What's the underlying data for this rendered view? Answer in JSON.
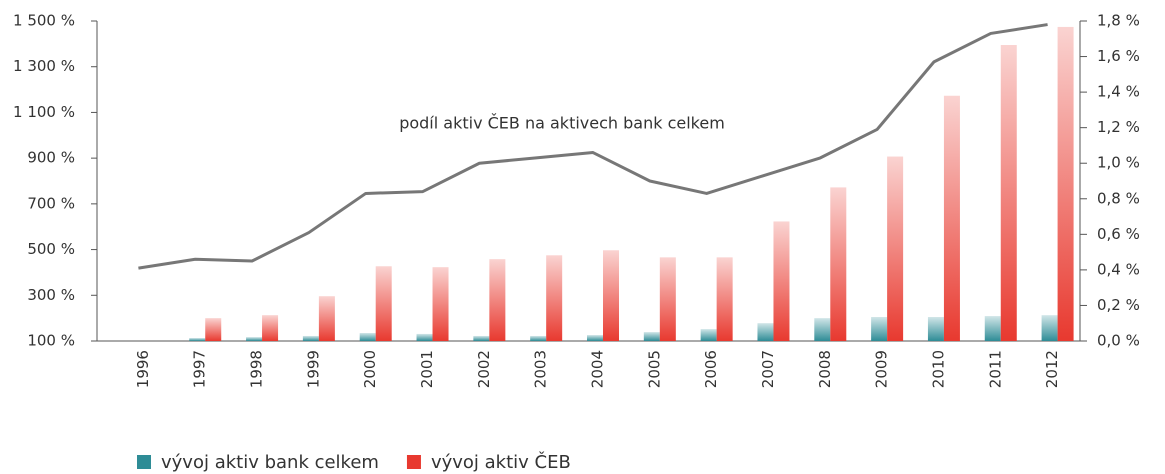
{
  "chart_data": {
    "type": "bar",
    "annotation": "podíl aktiv ČEB na aktivech bank celkem",
    "categories": [
      "1996",
      "1997",
      "1998",
      "1999",
      "2000",
      "2001",
      "2002",
      "2003",
      "2004",
      "2005",
      "2006",
      "2007",
      "2008",
      "2009",
      "2010",
      "2011",
      "2012"
    ],
    "series": [
      {
        "name": "vývoj aktiv bank celkem",
        "color": "#2e8c96",
        "type": "bar",
        "values": [
          100,
          113,
          117,
          122,
          135,
          131,
          122,
          122,
          126,
          139,
          152,
          178,
          200,
          205,
          205,
          209,
          213
        ]
      },
      {
        "name": "vývoj aktiv ČEB",
        "color": "#e8392f",
        "type": "bar",
        "values": [
          100,
          200,
          213,
          296,
          427,
          423,
          458,
          475,
          497,
          466,
          466,
          623,
          772,
          907,
          1173,
          1395,
          1474
        ]
      },
      {
        "color": "#777777",
        "type": "line",
        "axis": "y2",
        "values": [
          0.41,
          0.46,
          0.45,
          0.61,
          0.83,
          0.84,
          1.0,
          1.03,
          1.06,
          0.9,
          0.83,
          0.93,
          1.03,
          1.19,
          1.57,
          1.73,
          1.78
        ]
      }
    ],
    "ylim": [
      100,
      1500
    ],
    "yticks": [
      {
        "value": 100,
        "label": "100 %"
      },
      {
        "value": 300,
        "label": "300 %"
      },
      {
        "value": 500,
        "label": "500 %"
      },
      {
        "value": 700,
        "label": "700 %"
      },
      {
        "value": 900,
        "label": "900 %"
      },
      {
        "value": 1100,
        "label": "1 100 %"
      },
      {
        "value": 1300,
        "label": "1 300 %"
      },
      {
        "value": 1500,
        "label": "1 500 %"
      }
    ],
    "y2lim": [
      0,
      1.8
    ],
    "y2ticks": [
      {
        "value": 0,
        "label": "0,0 %"
      },
      {
        "value": 0.2,
        "label": "0,2 %"
      },
      {
        "value": 0.4,
        "label": "0,4 %"
      },
      {
        "value": 0.6,
        "label": "0,6 %"
      },
      {
        "value": 0.8,
        "label": "0,8 %"
      },
      {
        "value": 1.0,
        "label": "1,0 %"
      },
      {
        "value": 1.2,
        "label": "1,2 %"
      },
      {
        "value": 1.4,
        "label": "1,4 %"
      },
      {
        "value": 1.6,
        "label": "1,6 %"
      },
      {
        "value": 1.8,
        "label": "1,8 %"
      }
    ],
    "grid": false
  }
}
